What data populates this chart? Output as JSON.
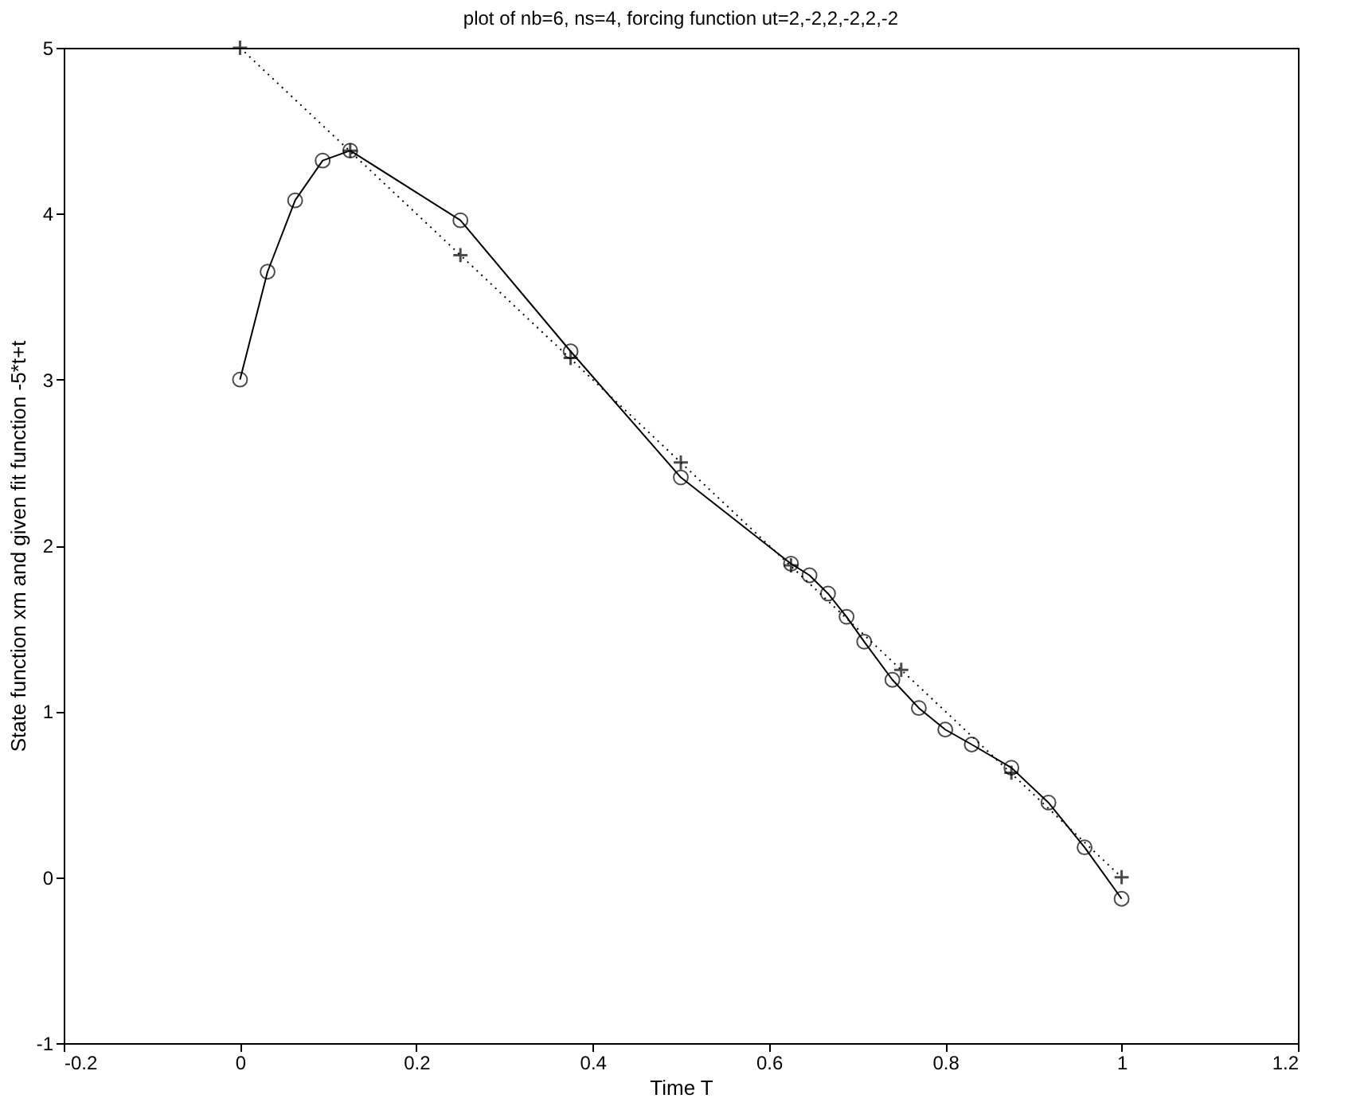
{
  "chart_data": {
    "type": "line",
    "title": "plot of nb=6, ns=4, forcing function ut=2,-2,2,-2,2,-2",
    "xlabel": "Time T",
    "ylabel": "State function xm and given fit function -5*t+t",
    "xlim": [
      -0.2,
      1.2
    ],
    "xticks": [
      -0.2,
      0,
      0.2,
      0.4,
      0.6,
      0.8,
      1,
      1.2
    ],
    "ylim": [
      -1,
      5
    ],
    "yticks": [
      -1,
      0,
      1,
      2,
      3,
      4,
      5
    ],
    "series": [
      {
        "type": "line",
        "marker": "circle",
        "line_style": "solid",
        "color": "#000000",
        "x": [
          0,
          0.03125,
          0.0625,
          0.09375,
          0.125,
          0.25,
          0.375,
          0.5,
          0.625,
          0.646,
          0.667,
          0.688,
          0.708,
          0.74,
          0.77,
          0.8,
          0.83,
          0.875,
          0.917,
          0.958,
          1
        ],
        "values": [
          3.0,
          3.65,
          4.08,
          4.32,
          4.38,
          3.96,
          3.17,
          2.41,
          1.89,
          1.82,
          1.71,
          1.57,
          1.42,
          1.19,
          1.02,
          0.89,
          0.8,
          0.66,
          0.45,
          0.18,
          -0.13
        ]
      },
      {
        "type": "scatter",
        "marker": "cross",
        "color": "#000000",
        "x": [
          0,
          0.125,
          0.25,
          0.375,
          0.5,
          0.625,
          0.75,
          0.875,
          1
        ],
        "values": [
          5,
          4.38,
          3.75,
          3.13,
          2.5,
          1.88,
          1.25,
          0.63,
          0
        ]
      },
      {
        "type": "line",
        "marker": "none",
        "line_style": "dotted",
        "color": "#000000",
        "x": [
          0,
          1
        ],
        "values": [
          5,
          0
        ]
      }
    ]
  }
}
